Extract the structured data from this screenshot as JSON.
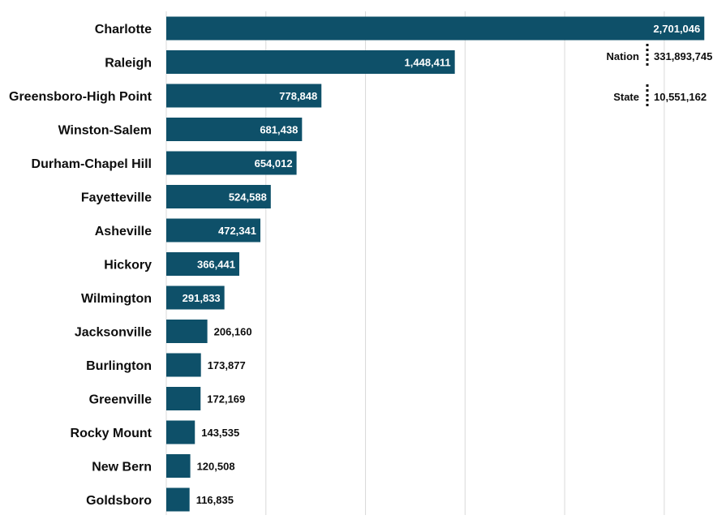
{
  "chart_data": {
    "type": "bar",
    "orientation": "horizontal",
    "categories": [
      "Charlotte",
      "Raleigh",
      "Greensboro-High Point",
      "Winston-Salem",
      "Durham-Chapel Hill",
      "Fayetteville",
      "Asheville",
      "Hickory",
      "Wilmington",
      "Jacksonville",
      "Burlington",
      "Greenville",
      "Rocky Mount",
      "New Bern",
      "Goldsboro"
    ],
    "values": [
      2701046,
      1448411,
      778848,
      681438,
      654012,
      524588,
      472341,
      366441,
      291833,
      206160,
      173877,
      172169,
      143535,
      120508,
      116835
    ],
    "value_labels": [
      "2,701,046",
      "1,448,411",
      "778,848",
      "681,438",
      "654,012",
      "524,588",
      "472,341",
      "366,441",
      "291,833",
      "206,160",
      "173,877",
      "172,169",
      "143,535",
      "120,508",
      "116,835"
    ],
    "xlim": [
      0,
      2700000
    ],
    "gridline_step": 500000,
    "grid": true,
    "bar_color": "#0e5069",
    "reference_values": [
      {
        "label": "Nation",
        "value": "331,893,745"
      },
      {
        "label": "State",
        "value": "10,551,162"
      }
    ]
  }
}
